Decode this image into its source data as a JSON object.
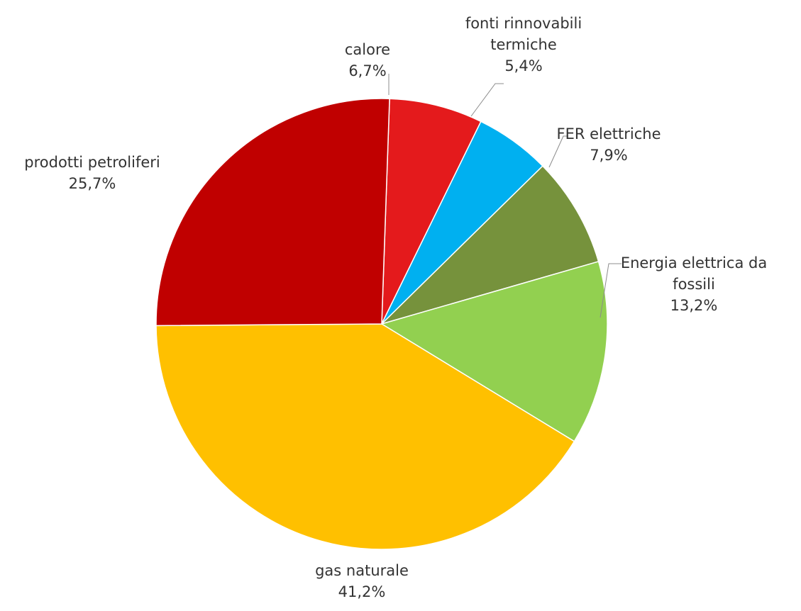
{
  "chart_data": {
    "type": "pie",
    "start_angle_deg": -88,
    "direction": "clockwise",
    "slices": [
      {
        "label": [
          "calore"
        ],
        "value": 6.7,
        "value_label": "6,7%",
        "color": "#e41a1c"
      },
      {
        "label": [
          "fonti rinnovabili",
          "termiche"
        ],
        "value": 5.4,
        "value_label": "5,4%",
        "color": "#00b0f0"
      },
      {
        "label": [
          "FER elettriche"
        ],
        "value": 7.9,
        "value_label": "7,9%",
        "color": "#76923c"
      },
      {
        "label": [
          "Energia elettrica da",
          "fossili"
        ],
        "value": 13.2,
        "value_label": "13,2%",
        "color": "#92d050"
      },
      {
        "label": [
          "gas naturale"
        ],
        "value": 41.2,
        "value_label": "41,2%",
        "color": "#ffc000"
      },
      {
        "label": [
          "prodotti petroliferi"
        ],
        "value": 25.7,
        "value_label": "25,7%",
        "color": "#c00000"
      }
    ]
  }
}
